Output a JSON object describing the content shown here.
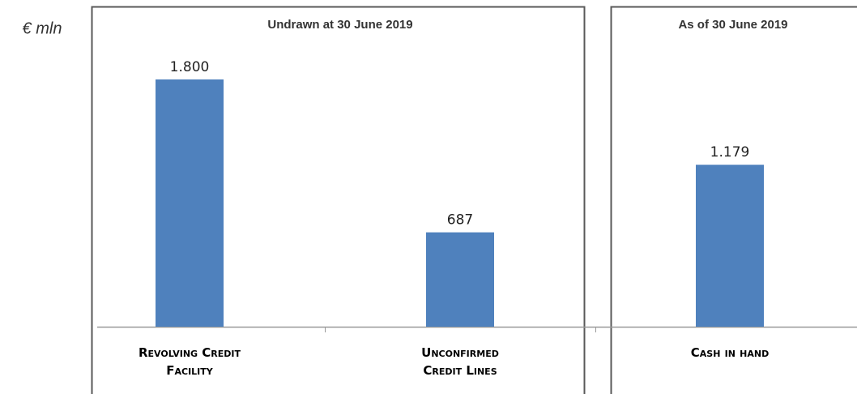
{
  "chart_data": {
    "type": "bar",
    "y_label": "€ mln",
    "panel_titles": [
      "Undrawn at  30 June 2019",
      "As of 30 June 2019"
    ],
    "categories": [
      "Revolving Credit Facility",
      "Unconfirmed Credit Lines",
      "Cash in hand"
    ],
    "values": [
      1800,
      687,
      1179
    ],
    "value_labels": [
      "1.800",
      "687",
      "1.179"
    ],
    "color": "#4f81bd",
    "ylim": [
      0,
      1800
    ]
  }
}
